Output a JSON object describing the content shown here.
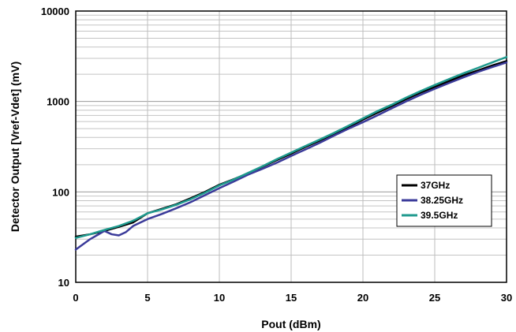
{
  "chart_data": {
    "type": "line",
    "xlabel": "Pout (dBm)",
    "ylabel": "Detector Output [Vref-Vdet] (mV)",
    "xlim": [
      0,
      30
    ],
    "ylim": [
      10,
      10000
    ],
    "yscale": "log",
    "grid": true,
    "legend_position": "center-right",
    "x_ticks": [
      "0",
      "5",
      "10",
      "15",
      "20",
      "25",
      "30"
    ],
    "y_ticks": [
      "10",
      "100",
      "1000",
      "10000"
    ],
    "series": [
      {
        "name": "37GHz",
        "color": "#000000",
        "x": [
          0,
          1,
          2,
          3,
          4,
          5,
          6,
          7,
          8,
          9,
          10,
          11,
          12,
          13,
          14,
          15,
          16,
          17,
          18,
          19,
          20,
          21,
          22,
          23,
          24,
          25,
          26,
          27,
          28,
          29,
          30
        ],
        "y": [
          32,
          34,
          37,
          41,
          46,
          58,
          65,
          73,
          85,
          100,
          120,
          138,
          160,
          190,
          225,
          265,
          315,
          370,
          440,
          520,
          630,
          750,
          890,
          1060,
          1250,
          1450,
          1680,
          1950,
          2200,
          2500,
          2800
        ]
      },
      {
        "name": "38.25GHz",
        "color": "#3b3b9a",
        "x": [
          0,
          1,
          2,
          2.5,
          3,
          3.5,
          4,
          5,
          6,
          7,
          8,
          9,
          10,
          11,
          12,
          13,
          14,
          15,
          16,
          17,
          18,
          19,
          20,
          21,
          22,
          23,
          24,
          25,
          26,
          27,
          28,
          29,
          30
        ],
        "y": [
          23,
          30,
          37,
          34,
          33,
          36,
          42,
          50,
          57,
          66,
          77,
          92,
          110,
          130,
          155,
          180,
          210,
          250,
          295,
          350,
          420,
          500,
          590,
          700,
          840,
          1000,
          1180,
          1380,
          1600,
          1850,
          2120,
          2400,
          2700
        ]
      },
      {
        "name": "39.5GHz",
        "color": "#1f9a8e",
        "x": [
          0,
          1,
          2,
          3,
          4,
          5,
          6,
          7,
          8,
          9,
          10,
          11,
          12,
          13,
          14,
          15,
          16,
          17,
          18,
          19,
          20,
          21,
          22,
          23,
          24,
          25,
          26,
          27,
          28,
          29,
          30
        ],
        "y": [
          31,
          34,
          38,
          42,
          48,
          58,
          64,
          72,
          83,
          98,
          118,
          137,
          162,
          192,
          230,
          272,
          322,
          380,
          450,
          540,
          650,
          780,
          920,
          1100,
          1300,
          1520,
          1770,
          2050,
          2350,
          2700,
          3100
        ]
      }
    ]
  }
}
